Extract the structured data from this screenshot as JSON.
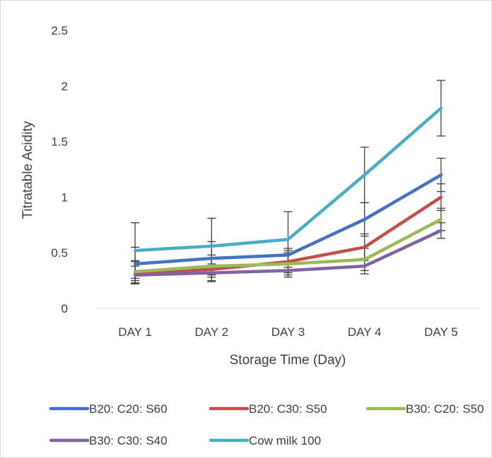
{
  "chart_data": {
    "type": "line",
    "categories": [
      "DAY 1",
      "DAY 2",
      "DAY 3",
      "DAY 4",
      "DAY 5"
    ],
    "xlabel": "Storage Time (Day)",
    "ylabel": "Titratable Acidity",
    "ylim": [
      0,
      2.5
    ],
    "yticks": [
      "0",
      "0.5",
      "1",
      "1.5",
      "2",
      "2.5"
    ],
    "grid": false,
    "legend_position": "bottom",
    "series": [
      {
        "name": "B20: C20: S60",
        "color": "#4472C4",
        "values": [
          0.4,
          0.45,
          0.48,
          0.8,
          1.2
        ],
        "error": [
          0.15,
          0.15,
          0.06,
          0.15,
          0.15
        ]
      },
      {
        "name": "B20: C30: S50",
        "color": "#C0504D",
        "values": [
          0.32,
          0.35,
          0.42,
          0.55,
          1.0
        ],
        "error": [
          0.1,
          0.1,
          0.1,
          0.12,
          0.12
        ]
      },
      {
        "name": "B30: C20: S50",
        "color": "#9BBB59",
        "values": [
          0.33,
          0.38,
          0.4,
          0.44,
          0.8
        ],
        "error": [
          0.1,
          0.1,
          0.1,
          0.1,
          0.1
        ]
      },
      {
        "name": "B30: C30: S40",
        "color": "#8064A2",
        "values": [
          0.3,
          0.32,
          0.34,
          0.38,
          0.7
        ],
        "error": [
          0.08,
          0.08,
          0.06,
          0.07,
          0.07
        ]
      },
      {
        "name": "Cow milk 100",
        "color": "#4BACC6",
        "values": [
          0.52,
          0.56,
          0.62,
          1.2,
          1.8
        ],
        "error": [
          0.25,
          0.25,
          0.25,
          0.25,
          0.25
        ]
      }
    ]
  }
}
